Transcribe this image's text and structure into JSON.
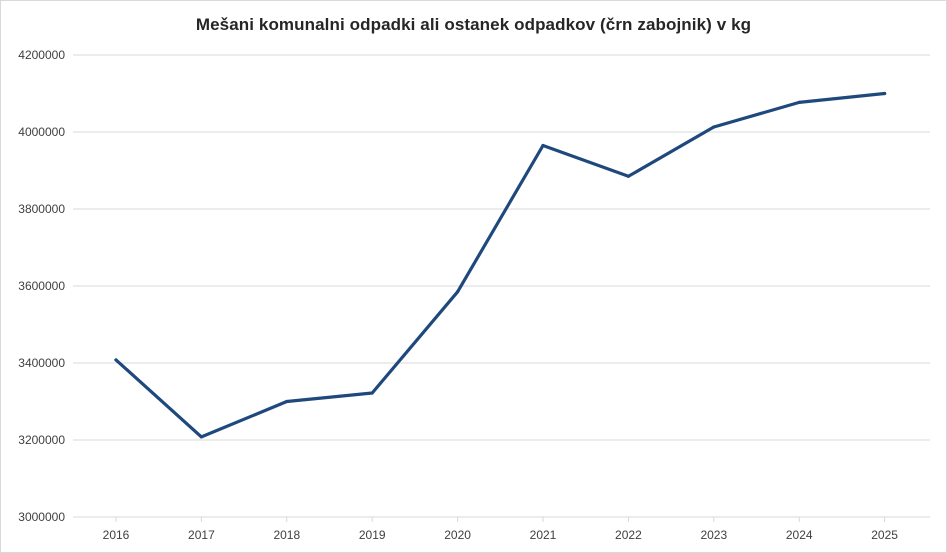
{
  "chart_data": {
    "type": "line",
    "title": "Mešani komunalni odpadki ali ostanek odpadkov (črn zabojnik) v kg",
    "xlabel": "",
    "ylabel": "",
    "categories": [
      "2016",
      "2017",
      "2018",
      "2019",
      "2020",
      "2021",
      "2022",
      "2023",
      "2024",
      "2025"
    ],
    "series": [
      {
        "values": [
          3408000,
          3208000,
          3300000,
          3322000,
          3585000,
          3965000,
          3885000,
          4013000,
          4077000,
          4100000
        ],
        "color": "#1f497d"
      }
    ],
    "ylim": [
      3000000,
      4200000
    ],
    "yticks": [
      3000000,
      3200000,
      3400000,
      3600000,
      3800000,
      4000000,
      4200000
    ],
    "grid": "horizontal",
    "legend": "none"
  }
}
